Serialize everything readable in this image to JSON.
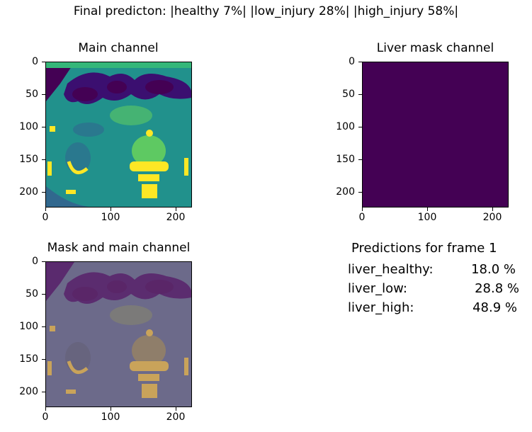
{
  "suptitle": "Final predicton: |healthy 7%| |low_injury 28%| |high_injury 58%|",
  "panels": {
    "main": {
      "title": "Main channel"
    },
    "liver": {
      "title": "Liver mask channel",
      "fill": "#440154"
    },
    "overlay": {
      "title": "Mask and main channel"
    }
  },
  "axis": {
    "y_ticks": [
      "0",
      "50",
      "100",
      "150",
      "200"
    ],
    "x_ticks": [
      "0",
      "100",
      "200"
    ]
  },
  "predictions": {
    "title": "Predictions for frame 1",
    "rows": [
      {
        "label": "liver_healthy:",
        "value": "18.0 %"
      },
      {
        "label": "liver_low:",
        "value": "28.8 %"
      },
      {
        "label": "liver_high:",
        "value": "48.9 %"
      }
    ]
  },
  "colors": {
    "viridis_dark": "#440154",
    "viridis_teal": "#21918c",
    "viridis_green": "#5ec962",
    "viridis_yellow": "#fde725"
  }
}
